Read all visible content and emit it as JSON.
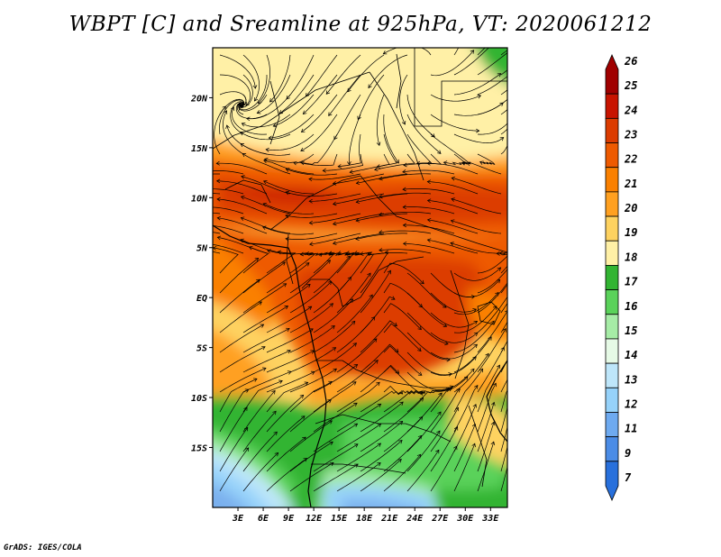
{
  "title": "WBPT [C] and Sreamline at 925hPa, VT: 2020061212",
  "footer": "GrADS: IGES/COLA",
  "map": {
    "region": "Central Africa",
    "lon_range": [
      0,
      35
    ],
    "lat_range": [
      -21,
      25
    ],
    "lat_ticks": [
      {
        "value": 20,
        "label": "20N"
      },
      {
        "value": 15,
        "label": "15N"
      },
      {
        "value": 10,
        "label": "10N"
      },
      {
        "value": 5,
        "label": "5N"
      },
      {
        "value": 0,
        "label": "EQ"
      },
      {
        "value": -5,
        "label": "5S"
      },
      {
        "value": -10,
        "label": "10S"
      },
      {
        "value": -15,
        "label": "15S"
      }
    ],
    "lon_ticks": [
      {
        "value": 3,
        "label": "3E"
      },
      {
        "value": 6,
        "label": "6E"
      },
      {
        "value": 9,
        "label": "9E"
      },
      {
        "value": 12,
        "label": "12E"
      },
      {
        "value": 15,
        "label": "15E"
      },
      {
        "value": 18,
        "label": "18E"
      },
      {
        "value": 21,
        "label": "21E"
      },
      {
        "value": 24,
        "label": "24E"
      },
      {
        "value": 27,
        "label": "27E"
      },
      {
        "value": 30,
        "label": "30E"
      },
      {
        "value": 33,
        "label": "33E"
      }
    ]
  },
  "colorbar": {
    "levels": [
      "26",
      "25",
      "24",
      "23",
      "22",
      "21",
      "20",
      "19",
      "18",
      "17",
      "16",
      "15",
      "14",
      "13",
      "12",
      "11",
      "9",
      "7"
    ],
    "colors": [
      "#a00000",
      "#c81400",
      "#dc3c00",
      "#ee5a00",
      "#fa8000",
      "#ffa020",
      "#fed260",
      "#fff0a6",
      "#32b432",
      "#5ad25a",
      "#a6eca6",
      "#e6fae6",
      "#bee6fa",
      "#96d2fa",
      "#6eaaf0",
      "#4b8ce6",
      "#2870dc"
    ]
  },
  "palette": {
    "ocean_south": "#7ab0ee",
    "streamline": "#000000"
  }
}
